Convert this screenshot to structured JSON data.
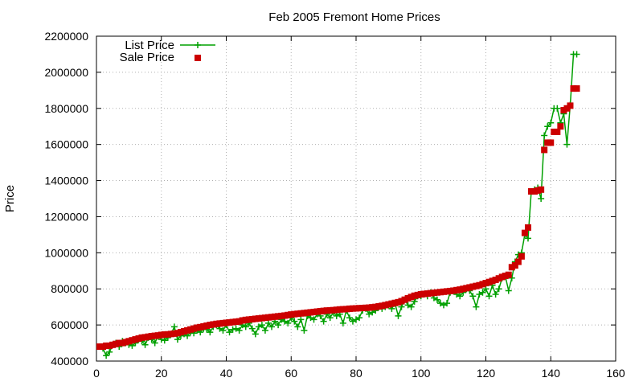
{
  "chart_data": {
    "type": "line",
    "title": "Feb 2005 Fremont Home Prices",
    "xlabel": "",
    "ylabel": "Price",
    "xlim": [
      0,
      160
    ],
    "ylim": [
      400000,
      2200000
    ],
    "x_ticks": [
      0,
      20,
      40,
      60,
      80,
      100,
      120,
      140,
      160
    ],
    "y_ticks": [
      400000,
      600000,
      800000,
      1000000,
      1200000,
      1400000,
      1600000,
      1800000,
      2000000,
      2200000
    ],
    "x_tick_labels": [
      "0",
      "20",
      "40",
      "60",
      "80",
      "100",
      "120",
      "140",
      "160"
    ],
    "y_tick_labels": [
      "400000",
      "600000",
      "800000",
      "1000000",
      "1200000",
      "1400000",
      "1600000",
      "1800000",
      "2000000",
      "2200000"
    ],
    "grid": true,
    "legend_position": "top-left",
    "series": [
      {
        "name": "List Price",
        "style": "line-with-plus-markers",
        "color": "#00a000",
        "points": [
          [
            1,
            480000
          ],
          [
            2,
            470000
          ],
          [
            3,
            430000
          ],
          [
            4,
            450000
          ],
          [
            5,
            490000
          ],
          [
            6,
            500000
          ],
          [
            7,
            480000
          ],
          [
            8,
            510000
          ],
          [
            9,
            500000
          ],
          [
            10,
            490000
          ],
          [
            11,
            485000
          ],
          [
            12,
            500000
          ],
          [
            13,
            520000
          ],
          [
            14,
            510000
          ],
          [
            15,
            490000
          ],
          [
            16,
            530000
          ],
          [
            17,
            520000
          ],
          [
            18,
            500000
          ],
          [
            19,
            540000
          ],
          [
            20,
            520000
          ],
          [
            21,
            515000
          ],
          [
            22,
            530000
          ],
          [
            23,
            550000
          ],
          [
            24,
            590000
          ],
          [
            25,
            520000
          ],
          [
            26,
            540000
          ],
          [
            27,
            550000
          ],
          [
            28,
            540000
          ],
          [
            29,
            560000
          ],
          [
            30,
            555000
          ],
          [
            31,
            570000
          ],
          [
            32,
            560000
          ],
          [
            33,
            580000
          ],
          [
            34,
            575000
          ],
          [
            35,
            560000
          ],
          [
            36,
            590000
          ],
          [
            37,
            600000
          ],
          [
            38,
            580000
          ],
          [
            39,
            570000
          ],
          [
            40,
            600000
          ],
          [
            41,
            560000
          ],
          [
            42,
            575000
          ],
          [
            43,
            580000
          ],
          [
            44,
            570000
          ],
          [
            45,
            600000
          ],
          [
            46,
            590000
          ],
          [
            47,
            610000
          ],
          [
            48,
            580000
          ],
          [
            49,
            550000
          ],
          [
            50,
            590000
          ],
          [
            51,
            600000
          ],
          [
            52,
            570000
          ],
          [
            53,
            610000
          ],
          [
            54,
            590000
          ],
          [
            55,
            620000
          ],
          [
            56,
            600000
          ],
          [
            57,
            630000
          ],
          [
            58,
            620000
          ],
          [
            59,
            610000
          ],
          [
            60,
            640000
          ],
          [
            61,
            620000
          ],
          [
            62,
            590000
          ],
          [
            63,
            630000
          ],
          [
            64,
            570000
          ],
          [
            65,
            650000
          ],
          [
            66,
            640000
          ],
          [
            67,
            630000
          ],
          [
            68,
            660000
          ],
          [
            69,
            650000
          ],
          [
            70,
            620000
          ],
          [
            71,
            660000
          ],
          [
            72,
            640000
          ],
          [
            73,
            670000
          ],
          [
            74,
            650000
          ],
          [
            75,
            660000
          ],
          [
            76,
            610000
          ],
          [
            77,
            680000
          ],
          [
            78,
            640000
          ],
          [
            79,
            620000
          ],
          [
            80,
            630000
          ],
          [
            81,
            640000
          ],
          [
            82,
            680000
          ],
          [
            83,
            690000
          ],
          [
            84,
            660000
          ],
          [
            85,
            670000
          ],
          [
            86,
            680000
          ],
          [
            87,
            700000
          ],
          [
            88,
            690000
          ],
          [
            89,
            700000
          ],
          [
            90,
            710000
          ],
          [
            91,
            690000
          ],
          [
            92,
            720000
          ],
          [
            93,
            650000
          ],
          [
            94,
            700000
          ],
          [
            95,
            740000
          ],
          [
            96,
            710000
          ],
          [
            97,
            700000
          ],
          [
            98,
            730000
          ],
          [
            99,
            760000
          ],
          [
            100,
            760000
          ],
          [
            101,
            770000
          ],
          [
            102,
            760000
          ],
          [
            103,
            780000
          ],
          [
            104,
            750000
          ],
          [
            105,
            740000
          ],
          [
            106,
            720000
          ],
          [
            107,
            710000
          ],
          [
            108,
            720000
          ],
          [
            109,
            780000
          ],
          [
            110,
            790000
          ],
          [
            111,
            770000
          ],
          [
            112,
            760000
          ],
          [
            113,
            780000
          ],
          [
            114,
            800000
          ],
          [
            115,
            790000
          ],
          [
            116,
            760000
          ],
          [
            117,
            700000
          ],
          [
            118,
            770000
          ],
          [
            119,
            780000
          ],
          [
            120,
            800000
          ],
          [
            121,
            760000
          ],
          [
            122,
            820000
          ],
          [
            123,
            770000
          ],
          [
            124,
            800000
          ],
          [
            125,
            860000
          ],
          [
            126,
            870000
          ],
          [
            127,
            790000
          ],
          [
            128,
            860000
          ],
          [
            129,
            950000
          ],
          [
            130,
            990000
          ],
          [
            131,
            1000000
          ],
          [
            132,
            1100000
          ],
          [
            133,
            1080000
          ],
          [
            134,
            1340000
          ],
          [
            135,
            1350000
          ],
          [
            136,
            1360000
          ],
          [
            137,
            1300000
          ],
          [
            138,
            1650000
          ],
          [
            139,
            1700000
          ],
          [
            140,
            1720000
          ],
          [
            141,
            1800000
          ],
          [
            142,
            1800000
          ],
          [
            143,
            1720000
          ],
          [
            144,
            1770000
          ],
          [
            145,
            1600000
          ],
          [
            146,
            1820000
          ],
          [
            147,
            2100000
          ],
          [
            148,
            2100000
          ]
        ]
      },
      {
        "name": "Sale Price",
        "style": "square-markers",
        "color": "#cc0000",
        "points": [
          [
            1,
            480000
          ],
          [
            2,
            480000
          ],
          [
            3,
            485000
          ],
          [
            4,
            485000
          ],
          [
            5,
            490000
          ],
          [
            6,
            495000
          ],
          [
            7,
            500000
          ],
          [
            8,
            500000
          ],
          [
            9,
            505000
          ],
          [
            10,
            510000
          ],
          [
            11,
            515000
          ],
          [
            12,
            520000
          ],
          [
            13,
            525000
          ],
          [
            14,
            530000
          ],
          [
            15,
            532000
          ],
          [
            16,
            535000
          ],
          [
            17,
            538000
          ],
          [
            18,
            540000
          ],
          [
            19,
            542000
          ],
          [
            20,
            545000
          ],
          [
            21,
            547000
          ],
          [
            22,
            548000
          ],
          [
            23,
            550000
          ],
          [
            24,
            552000
          ],
          [
            25,
            555000
          ],
          [
            26,
            560000
          ],
          [
            27,
            565000
          ],
          [
            28,
            570000
          ],
          [
            29,
            575000
          ],
          [
            30,
            580000
          ],
          [
            31,
            585000
          ],
          [
            32,
            588000
          ],
          [
            33,
            592000
          ],
          [
            34,
            596000
          ],
          [
            35,
            600000
          ],
          [
            36,
            603000
          ],
          [
            37,
            606000
          ],
          [
            38,
            608000
          ],
          [
            39,
            610000
          ],
          [
            40,
            612000
          ],
          [
            41,
            614000
          ],
          [
            42,
            616000
          ],
          [
            43,
            618000
          ],
          [
            44,
            620000
          ],
          [
            45,
            625000
          ],
          [
            46,
            628000
          ],
          [
            47,
            630000
          ],
          [
            48,
            632000
          ],
          [
            49,
            634000
          ],
          [
            50,
            636000
          ],
          [
            51,
            638000
          ],
          [
            52,
            640000
          ],
          [
            53,
            642000
          ],
          [
            54,
            644000
          ],
          [
            55,
            646000
          ],
          [
            56,
            648000
          ],
          [
            57,
            650000
          ],
          [
            58,
            652000
          ],
          [
            59,
            655000
          ],
          [
            60,
            658000
          ],
          [
            61,
            660000
          ],
          [
            62,
            662000
          ],
          [
            63,
            664000
          ],
          [
            64,
            666000
          ],
          [
            65,
            668000
          ],
          [
            66,
            670000
          ],
          [
            67,
            672000
          ],
          [
            68,
            674000
          ],
          [
            69,
            676000
          ],
          [
            70,
            678000
          ],
          [
            71,
            680000
          ],
          [
            72,
            681000
          ],
          [
            73,
            682000
          ],
          [
            74,
            684000
          ],
          [
            75,
            686000
          ],
          [
            76,
            687000
          ],
          [
            77,
            688000
          ],
          [
            78,
            690000
          ],
          [
            79,
            691000
          ],
          [
            80,
            692000
          ],
          [
            81,
            693000
          ],
          [
            82,
            694000
          ],
          [
            83,
            695000
          ],
          [
            84,
            696000
          ],
          [
            85,
            698000
          ],
          [
            86,
            700000
          ],
          [
            87,
            703000
          ],
          [
            88,
            706000
          ],
          [
            89,
            710000
          ],
          [
            90,
            714000
          ],
          [
            91,
            718000
          ],
          [
            92,
            722000
          ],
          [
            93,
            726000
          ],
          [
            94,
            732000
          ],
          [
            95,
            740000
          ],
          [
            96,
            748000
          ],
          [
            97,
            755000
          ],
          [
            98,
            762000
          ],
          [
            99,
            766000
          ],
          [
            100,
            770000
          ],
          [
            101,
            772000
          ],
          [
            102,
            774000
          ],
          [
            103,
            776000
          ],
          [
            104,
            778000
          ],
          [
            105,
            780000
          ],
          [
            106,
            782000
          ],
          [
            107,
            784000
          ],
          [
            108,
            786000
          ],
          [
            109,
            788000
          ],
          [
            110,
            790000
          ],
          [
            111,
            793000
          ],
          [
            112,
            796000
          ],
          [
            113,
            800000
          ],
          [
            114,
            804000
          ],
          [
            115,
            808000
          ],
          [
            116,
            812000
          ],
          [
            117,
            816000
          ],
          [
            118,
            820000
          ],
          [
            119,
            826000
          ],
          [
            120,
            832000
          ],
          [
            121,
            838000
          ],
          [
            122,
            844000
          ],
          [
            123,
            850000
          ],
          [
            124,
            858000
          ],
          [
            125,
            866000
          ],
          [
            126,
            872000
          ],
          [
            127,
            878000
          ],
          [
            128,
            920000
          ],
          [
            129,
            930000
          ],
          [
            130,
            950000
          ],
          [
            131,
            980000
          ],
          [
            132,
            1110000
          ],
          [
            133,
            1140000
          ],
          [
            134,
            1340000
          ],
          [
            135,
            1340000
          ],
          [
            136,
            1345000
          ],
          [
            137,
            1350000
          ],
          [
            138,
            1570000
          ],
          [
            139,
            1610000
          ],
          [
            140,
            1610000
          ],
          [
            141,
            1670000
          ],
          [
            142,
            1670000
          ],
          [
            143,
            1700000
          ],
          [
            144,
            1790000
          ],
          [
            145,
            1800000
          ],
          [
            146,
            1815000
          ],
          [
            147,
            1910000
          ],
          [
            148,
            1910000
          ]
        ]
      }
    ]
  }
}
